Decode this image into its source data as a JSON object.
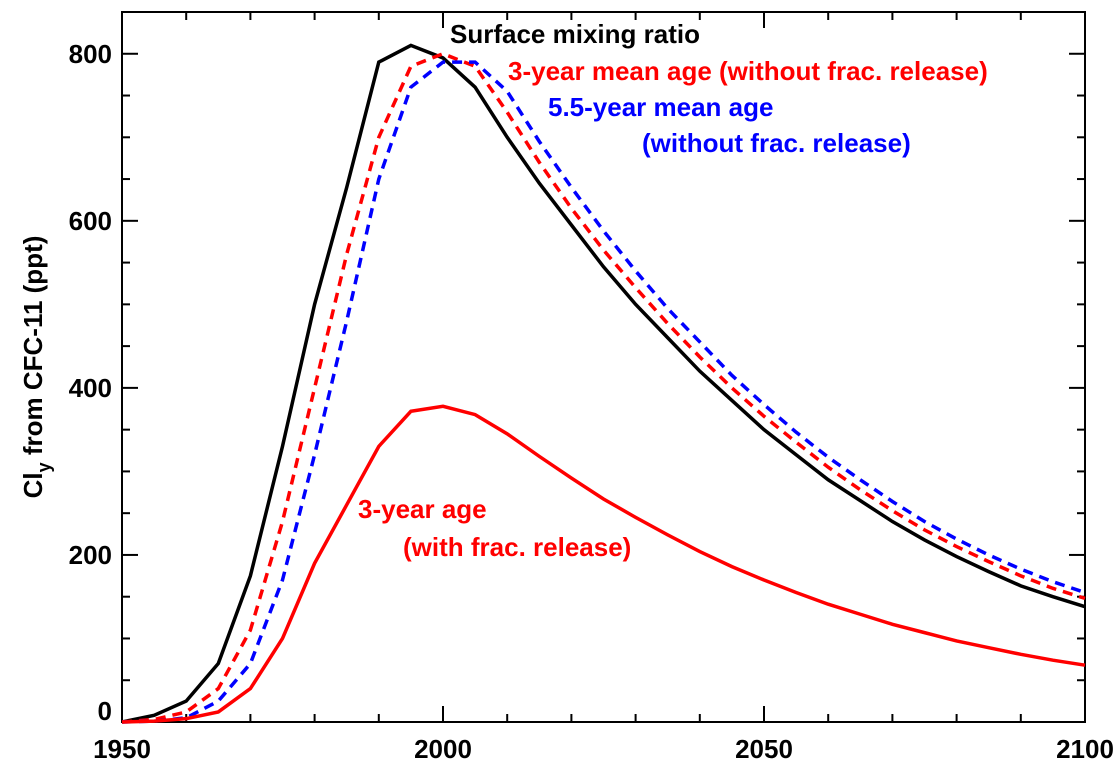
{
  "chart_data": {
    "type": "line",
    "ylabel": {
      "main": "Cl",
      "sub": "y",
      "rest": " from CFC-11 (ppt)"
    },
    "x": [
      1950,
      1955,
      1960,
      1965,
      1970,
      1975,
      1980,
      1985,
      1990,
      1995,
      2000,
      2005,
      2010,
      2015,
      2020,
      2025,
      2030,
      2035,
      2040,
      2045,
      2050,
      2055,
      2060,
      2065,
      2070,
      2075,
      2080,
      2085,
      2090,
      2095,
      2100
    ],
    "series": [
      {
        "name": "Surface mixing ratio",
        "color": "#000000",
        "dash": false,
        "values": [
          0,
          8,
          25,
          70,
          175,
          330,
          500,
          640,
          790,
          810,
          795,
          760,
          700,
          645,
          595,
          545,
          500,
          460,
          420,
          385,
          350,
          320,
          290,
          265,
          240,
          218,
          198,
          180,
          163,
          150,
          138
        ]
      },
      {
        "name": "3-year mean age (without frac. release)",
        "color": "#ff0000",
        "dash": true,
        "values": [
          0,
          3,
          12,
          40,
          110,
          240,
          400,
          560,
          700,
          785,
          800,
          785,
          730,
          670,
          615,
          565,
          520,
          477,
          437,
          400,
          366,
          335,
          305,
          278,
          253,
          230,
          210,
          192,
          175,
          160,
          148
        ]
      },
      {
        "name": "5.5-year mean age",
        "name2": "(without frac. release)",
        "color": "#0000ff",
        "dash": true,
        "values": [
          0,
          1,
          5,
          25,
          70,
          170,
          320,
          480,
          650,
          760,
          790,
          790,
          755,
          695,
          640,
          588,
          540,
          495,
          455,
          415,
          380,
          347,
          317,
          290,
          264,
          240,
          219,
          200,
          183,
          168,
          155
        ]
      },
      {
        "name": "3-year age",
        "name2": "(with frac. release)",
        "color": "#ff0000",
        "dash": false,
        "values": [
          0,
          1,
          4,
          12,
          40,
          100,
          190,
          260,
          330,
          372,
          378,
          368,
          345,
          318,
          292,
          267,
          245,
          224,
          204,
          186,
          170,
          155,
          141,
          129,
          117,
          107,
          97,
          89,
          81,
          74,
          68
        ]
      }
    ],
    "xlim": [
      1950,
      2100
    ],
    "xticks": [
      1950,
      2000,
      2050,
      2100
    ],
    "xminorticks": [
      1960,
      1970,
      1980,
      1990,
      2010,
      2020,
      2030,
      2040,
      2060,
      2070,
      2080,
      2090
    ],
    "ylim": [
      0,
      850
    ],
    "yticks": [
      0,
      200,
      400,
      600,
      800
    ],
    "yminorticks": [
      50,
      100,
      150,
      250,
      300,
      350,
      450,
      500,
      550,
      650,
      700,
      750,
      850
    ]
  }
}
